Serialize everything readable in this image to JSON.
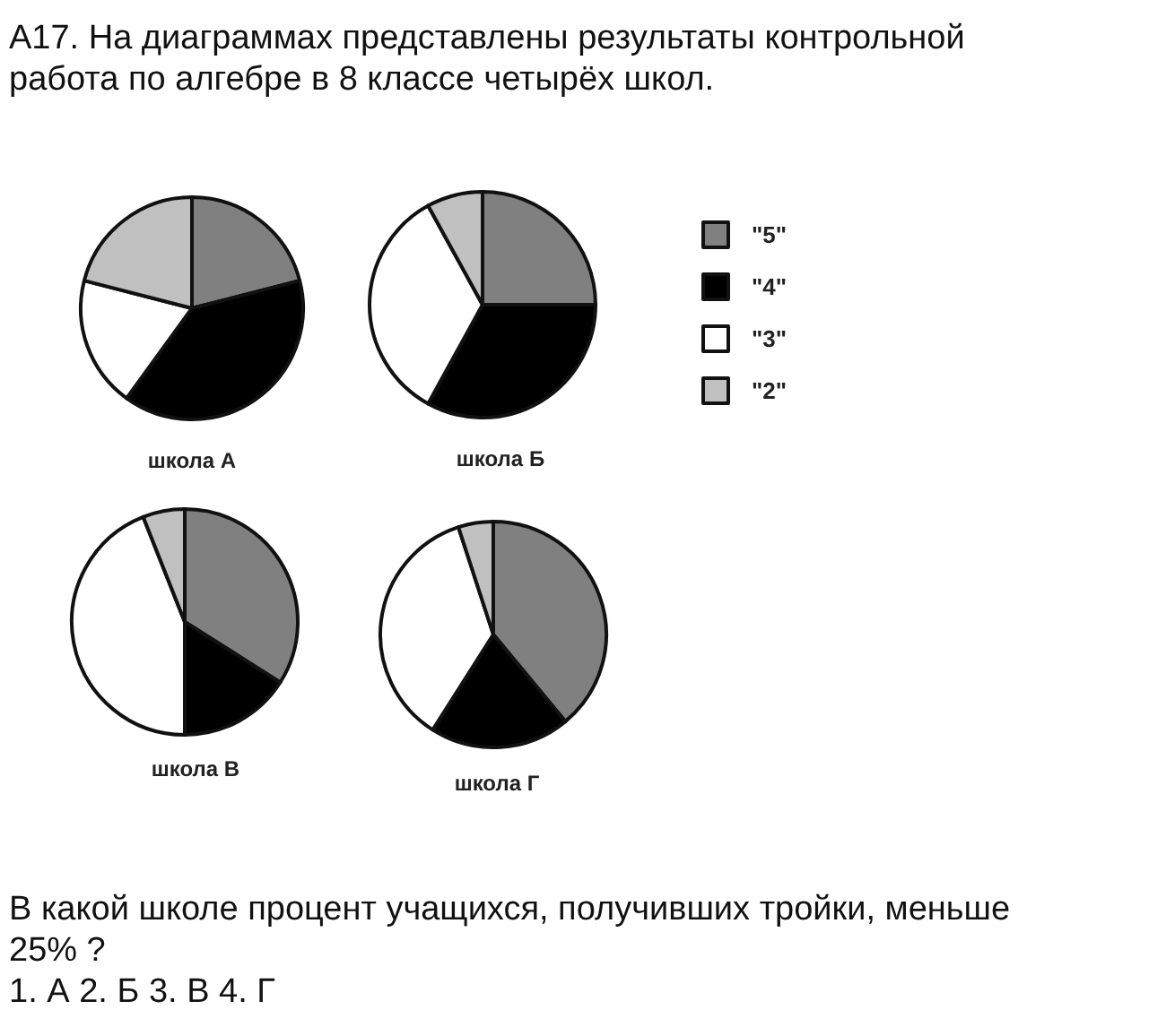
{
  "chart_data": [
    {
      "type": "other",
      "title": "А17. На диаграммах представлены результаты контрольной работа по алгебре в 8 классе четырёх школ."
    },
    {
      "type": "pie",
      "title": "школа А",
      "categories": [
        null,
        null,
        null,
        null
      ],
      "values": [
        21,
        39,
        19,
        21
      ],
      "colors": [
        "#808080",
        "#000000",
        "#ffffff",
        "#c0c0c0"
      ]
    },
    {
      "type": "pie",
      "title": "школа Б",
      "categories": [
        "\"5\"",
        "\"4\"",
        "\"3\"",
        "\"2\""
      ],
      "values": [
        25,
        33,
        34,
        8
      ],
      "colors": [
        "#808080",
        "#000000",
        "#ffffff",
        "#c0c0c0"
      ],
      "legend": "right"
    },
    {
      "type": "pie",
      "title": "школа В",
      "categories": [
        null,
        null,
        null,
        null
      ],
      "values": [
        34,
        16,
        44,
        6
      ],
      "colors": [
        "#808080",
        "#000000",
        "#ffffff",
        "#c0c0c0"
      ]
    },
    {
      "type": "pie",
      "title": "школа Г",
      "categories": [
        null,
        null,
        null,
        null
      ],
      "values": [
        39,
        20,
        36,
        5
      ],
      "colors": [
        "#808080",
        "#000000",
        "#ffffff",
        "#c0c0c0"
      ]
    },
    {
      "type": "other",
      "annotations": [
        "В какой школе процент учащихся, получивших тройки, меньше 25% ?",
        "1. А 2. Б 3. В 4. Г"
      ]
    }
  ]
}
